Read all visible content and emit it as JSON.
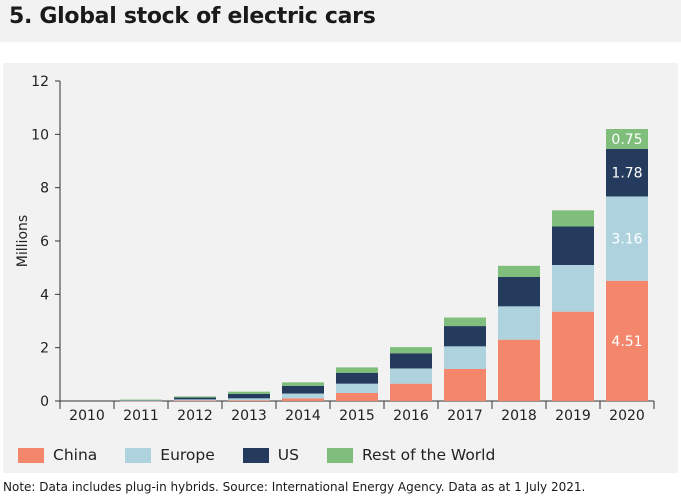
{
  "title": "5. Global stock of electric cars",
  "note": "Note: Data includes plug-in hybrids. Source: International Energy Agency. Data as at 1 July 2021.",
  "colors": {
    "China": "#f4866b",
    "Europe": "#aed3df",
    "US": "#243b5e",
    "Rest of the World": "#7fbf7b",
    "panel": "#f2f2f2"
  },
  "chart_data": {
    "type": "bar",
    "stacked": true,
    "ylabel": "Millions",
    "xlabel": "",
    "ylim": [
      0,
      12
    ],
    "yticks": [
      0,
      2,
      4,
      6,
      8,
      10,
      12
    ],
    "grid": false,
    "legend_position": "bottom",
    "categories": [
      "2010",
      "2011",
      "2012",
      "2013",
      "2014",
      "2015",
      "2016",
      "2017",
      "2018",
      "2019",
      "2020"
    ],
    "series": [
      {
        "name": "China",
        "values": [
          0.0,
          0.01,
          0.02,
          0.03,
          0.1,
          0.3,
          0.65,
          1.2,
          2.3,
          3.35,
          4.51
        ]
      },
      {
        "name": "Europe",
        "values": [
          0.0,
          0.01,
          0.04,
          0.07,
          0.18,
          0.35,
          0.57,
          0.85,
          1.25,
          1.75,
          3.16
        ]
      },
      {
        "name": "US",
        "values": [
          0.0,
          0.02,
          0.07,
          0.17,
          0.29,
          0.41,
          0.57,
          0.76,
          1.1,
          1.45,
          1.78
        ]
      },
      {
        "name": "Rest of the World",
        "values": [
          0.0,
          0.01,
          0.04,
          0.08,
          0.13,
          0.2,
          0.23,
          0.32,
          0.42,
          0.6,
          0.75
        ]
      }
    ],
    "data_labels": [
      {
        "category": "2020",
        "series": "China",
        "text": "4.51"
      },
      {
        "category": "2020",
        "series": "Europe",
        "text": "3.16"
      },
      {
        "category": "2020",
        "series": "US",
        "text": "1.78"
      },
      {
        "category": "2020",
        "series": "Rest of the World",
        "text": "0.75"
      }
    ]
  }
}
